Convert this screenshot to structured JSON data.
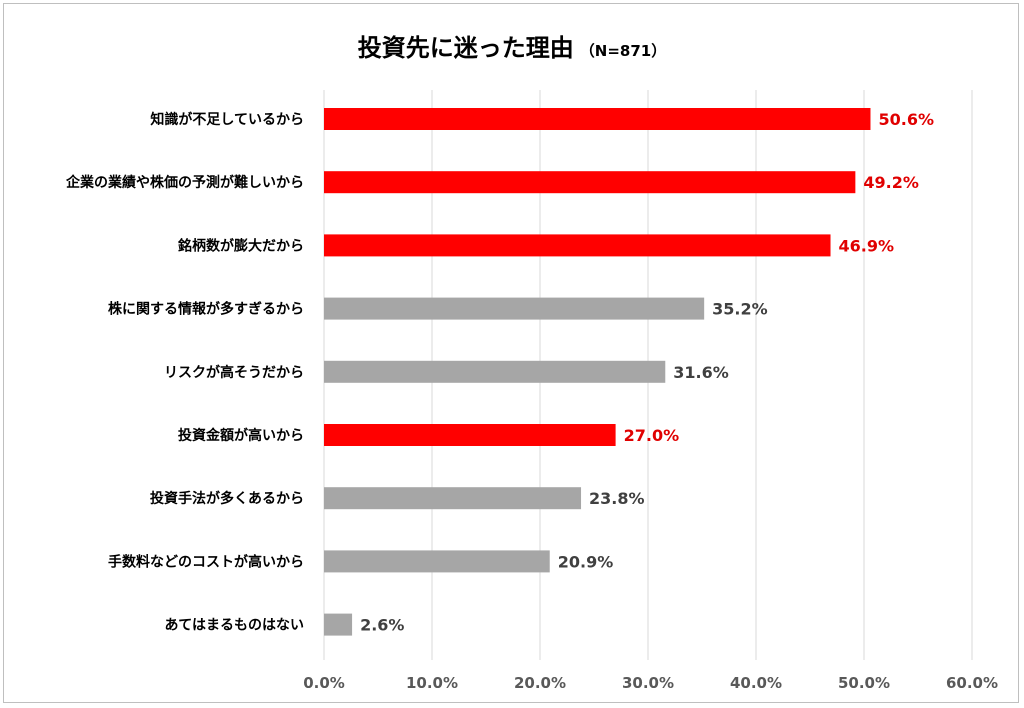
{
  "chart_data": {
    "type": "bar",
    "orientation": "horizontal",
    "title": "投資先に迷った理由",
    "subtitle": "（N=871）",
    "categories": [
      "知識が不足しているから",
      "企業の業績や株価の予測が難しいから",
      "銘柄数が膨大だから",
      "株に関する情報が多すぎるから",
      "リスクが高そうだから",
      "投資金額が高いから",
      "投資手法が多くあるから",
      "手数料などのコストが高いから",
      "あてはまるものはない"
    ],
    "values": [
      50.6,
      49.2,
      46.9,
      35.2,
      31.6,
      27.0,
      23.8,
      20.9,
      2.6
    ],
    "value_labels": [
      "50.6%",
      "49.2%",
      "46.9%",
      "35.2%",
      "31.6%",
      "27.0%",
      "23.8%",
      "20.9%",
      "2.6%"
    ],
    "highlighted": [
      true,
      true,
      true,
      false,
      false,
      true,
      false,
      false,
      false
    ],
    "xlim": [
      0,
      60
    ],
    "xticks": [
      "0.0%",
      "10.0%",
      "20.0%",
      "30.0%",
      "40.0%",
      "50.0%",
      "60.0%"
    ],
    "grid": "vertical",
    "colors": {
      "highlight": "#ff0000",
      "normal": "#a6a6a6",
      "highlight_label": "#e00000",
      "normal_label": "#404040",
      "grid": "#d9d9d9",
      "axis_tick": "#595959"
    }
  }
}
